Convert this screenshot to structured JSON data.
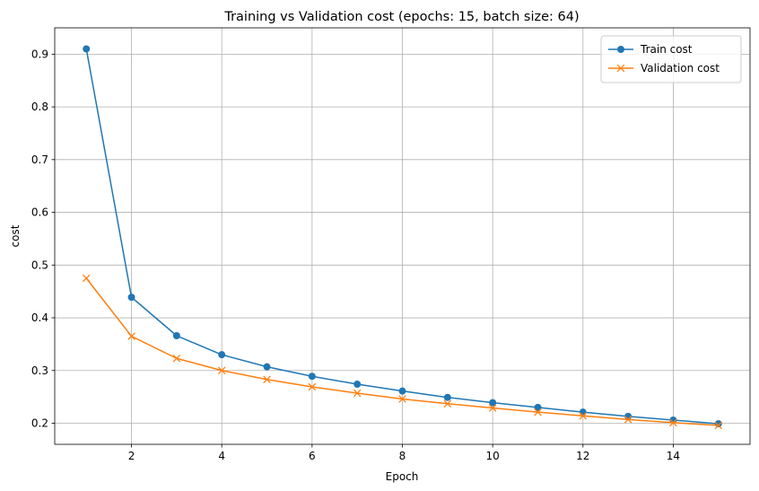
{
  "chart_data": {
    "type": "line",
    "title": "Training vs Validation cost (epochs: 15, batch size: 64)",
    "xlabel": "Epoch",
    "ylabel": "cost",
    "x": [
      1,
      2,
      3,
      4,
      5,
      6,
      7,
      8,
      9,
      10,
      11,
      12,
      13,
      14,
      15
    ],
    "xlim": [
      0.3,
      15.7
    ],
    "ylim": [
      0.16,
      0.95
    ],
    "x_ticks": [
      2,
      4,
      6,
      8,
      10,
      12,
      14
    ],
    "y_ticks": [
      0.2,
      0.3,
      0.4,
      0.5,
      0.6,
      0.7,
      0.8,
      0.9
    ],
    "x_tick_labels": [
      "2",
      "4",
      "6",
      "8",
      "10",
      "12",
      "14"
    ],
    "y_tick_labels": [
      "0.2",
      "0.3",
      "0.4",
      "0.5",
      "0.6",
      "0.7",
      "0.8",
      "0.9"
    ],
    "grid": true,
    "legend_position": "top-right",
    "series": [
      {
        "name": "Train cost",
        "color": "#1f77b4",
        "marker": "circle",
        "values": [
          0.91,
          0.439,
          0.366,
          0.33,
          0.307,
          0.289,
          0.274,
          0.261,
          0.249,
          0.239,
          0.23,
          0.221,
          0.213,
          0.206,
          0.199
        ]
      },
      {
        "name": "Validation cost",
        "color": "#ff7f0e",
        "marker": "x",
        "values": [
          0.475,
          0.365,
          0.323,
          0.3,
          0.283,
          0.269,
          0.257,
          0.246,
          0.237,
          0.229,
          0.221,
          0.214,
          0.207,
          0.201,
          0.196
        ]
      }
    ]
  }
}
